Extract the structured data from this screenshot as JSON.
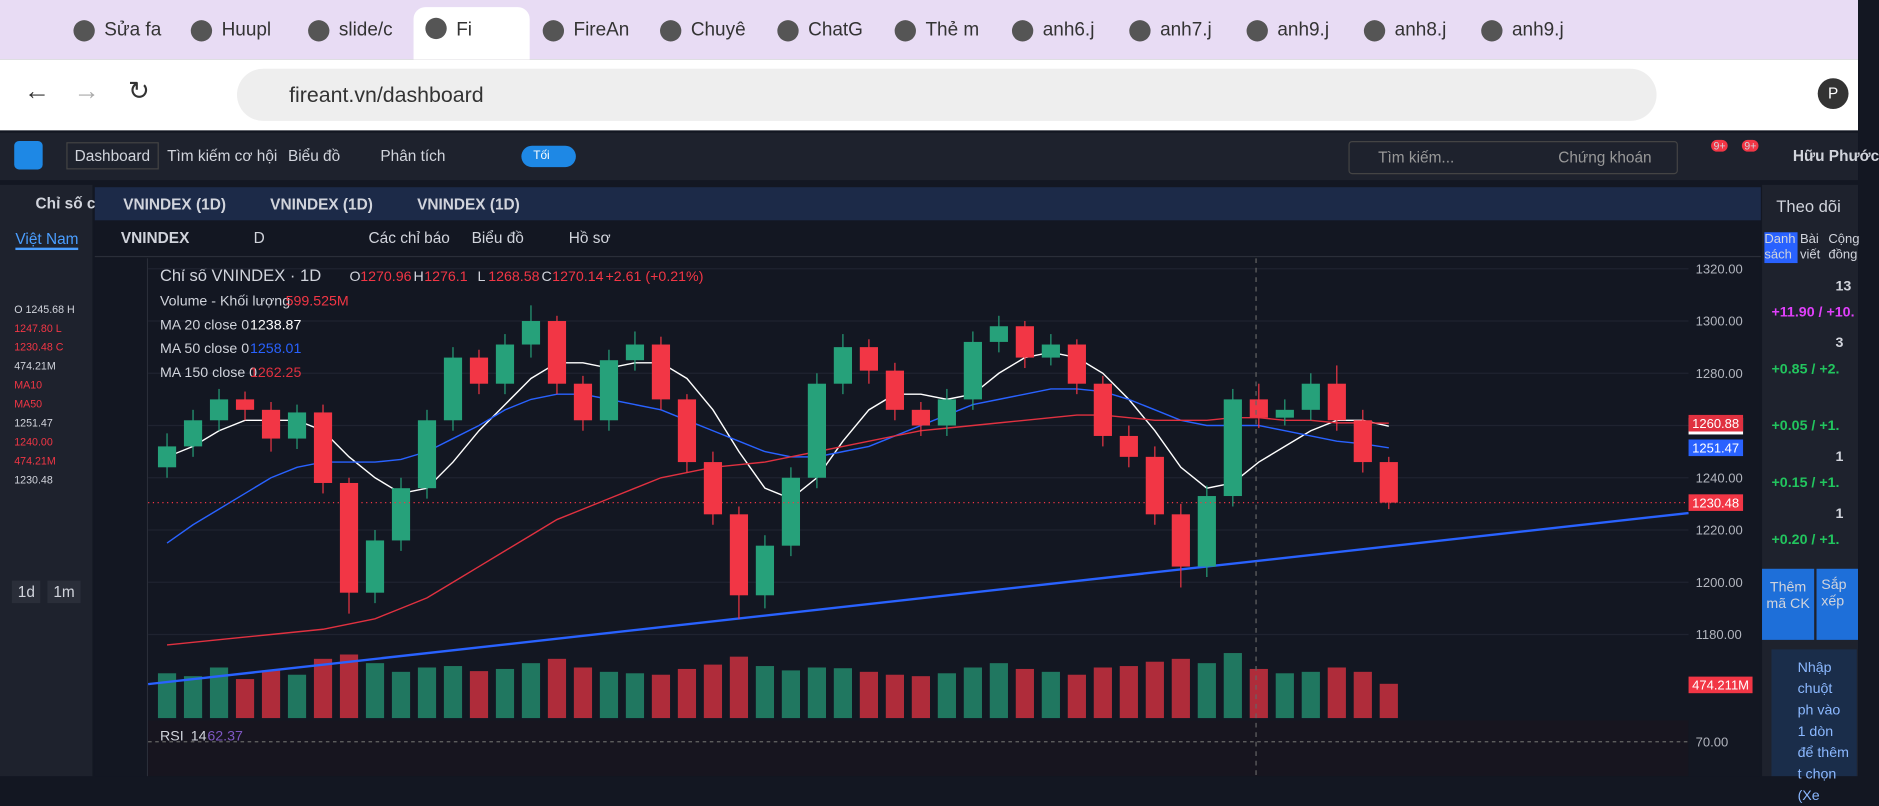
{
  "browser": {
    "tabs": [
      "Sửa fa",
      "Huupl",
      "slide/c",
      "Fi",
      "FireAn",
      "Chuyê",
      "ChatG",
      "Thẻ m",
      "anh6.j",
      "anh7.j",
      "anh9.j",
      "anh8.j",
      "anh9.j"
    ],
    "active_tab": 3,
    "url": "fireant.vn/dashboard",
    "profile": "P"
  },
  "app": {
    "menu": [
      "Dashboard",
      "Tìm kiếm cơ hội",
      "Biểu đồ",
      "Phân tích"
    ],
    "theme_toggle": "Tối",
    "search": "Tìm kiếm...",
    "search_scope": "Chứng khoán",
    "badges": [
      "9+",
      "9+"
    ],
    "user": "Hữu Phước"
  },
  "left_panel": {
    "title": "Chỉ số c",
    "tab": "Việt Nam",
    "lines": [
      "O 1245.68 H",
      "1247.80 L",
      "1230.48 C",
      "474.21M",
      "MA10",
      "MA50",
      "1251.47",
      "1240.00",
      "474.21M",
      "1230.48"
    ],
    "ranges": [
      "1d",
      "1m"
    ]
  },
  "chart_tabs": [
    "VNINDEX (1D)",
    "VNINDEX (1D)",
    "VNINDEX (1D)"
  ],
  "toolbar": {
    "symbol": "VNINDEX",
    "interval": "D",
    "indicators": "Các chỉ báo",
    "chart_menu": "Biểu đồ",
    "profile": "Hồ sơ"
  },
  "right_panel": {
    "title": "Theo dõi",
    "tabs": [
      "Danh sách",
      "Bài viết",
      "Cộng đồng"
    ],
    "rows": [
      [
        "13",
        "+11.90 / +10."
      ],
      [
        "3",
        "+0.85 / +2."
      ],
      [
        "",
        "+0.05 / +1."
      ],
      [
        "1",
        "+0.15 / +1."
      ],
      [
        "1",
        "+0.20 / +1."
      ]
    ],
    "add": "Thêm mã CK",
    "sort": "Sắp xếp",
    "hint": "Nhập chuột ph vào 1 dòn để thêm t chọn (Xe"
  },
  "chart_data": {
    "type": "candlestick",
    "title": "Chỉ số VNINDEX · 1D",
    "readout": [
      {
        "label": "O",
        "value": 1270.96
      },
      {
        "label": "H",
        "value": 1276.1
      },
      {
        "label": "L",
        "value": 1268.58
      },
      {
        "label": "C",
        "value": 1270.14
      }
    ],
    "change": "+2.61 (+0.21%)",
    "volume_title": "Volume - Khối lượng",
    "volume_readout": "599.525M",
    "open": [
      1244,
      1252,
      1262,
      1270,
      1266,
      1255,
      1265,
      1238,
      1196,
      1216,
      1236,
      1262,
      1286,
      1276,
      1291,
      1300,
      1276,
      1262,
      1285,
      1291,
      1270,
      1246,
      1226,
      1195,
      1214,
      1240,
      1276,
      1290,
      1281,
      1266,
      1260,
      1270,
      1292,
      1298,
      1286,
      1291,
      1276,
      1256,
      1248,
      1226,
      1206,
      1233,
      1270,
      1263,
      1266,
      1276,
      1262,
      1246
    ],
    "high": [
      1257,
      1266,
      1274,
      1273,
      1269,
      1268,
      1268,
      1240,
      1220,
      1240,
      1266,
      1290,
      1289,
      1295,
      1306,
      1302,
      1279,
      1289,
      1296,
      1294,
      1272,
      1250,
      1229,
      1218,
      1244,
      1280,
      1295,
      1293,
      1284,
      1269,
      1274,
      1296,
      1302,
      1300,
      1295,
      1293,
      1279,
      1260,
      1252,
      1230,
      1237,
      1274,
      1276,
      1270,
      1280,
      1283,
      1266,
      1248
    ],
    "low": [
      1240,
      1248,
      1258,
      1262,
      1250,
      1251,
      1234,
      1188,
      1192,
      1212,
      1232,
      1258,
      1272,
      1272,
      1286,
      1272,
      1258,
      1258,
      1281,
      1266,
      1242,
      1222,
      1186,
      1190,
      1210,
      1236,
      1272,
      1276,
      1262,
      1256,
      1256,
      1266,
      1288,
      1282,
      1283,
      1272,
      1252,
      1244,
      1222,
      1198,
      1202,
      1229,
      1259,
      1260,
      1262,
      1258,
      1242,
      1228
    ],
    "close": [
      1252,
      1262,
      1270,
      1266,
      1255,
      1265,
      1238,
      1196,
      1216,
      1236,
      1262,
      1286,
      1276,
      1291,
      1300,
      1276,
      1262,
      1285,
      1291,
      1270,
      1246,
      1226,
      1195,
      1214,
      1240,
      1276,
      1290,
      1281,
      1266,
      1260,
      1270,
      1292,
      1298,
      1286,
      1291,
      1276,
      1256,
      1248,
      1226,
      1206,
      1233,
      1270,
      1263,
      1266,
      1276,
      1262,
      1246,
      1230.48
    ],
    "volume": [
      620,
      580,
      700,
      540,
      660,
      600,
      820,
      880,
      760,
      640,
      700,
      720,
      650,
      680,
      760,
      820,
      700,
      640,
      620,
      600,
      680,
      740,
      850,
      720,
      660,
      700,
      690,
      640,
      600,
      580,
      620,
      700,
      760,
      680,
      640,
      600,
      700,
      720,
      780,
      820,
      760,
      900,
      680,
      620,
      640,
      700,
      640,
      474.211
    ],
    "volume_labels": {
      "47": "474.211M"
    },
    "up_color": "#26a17a",
    "down_color": "#f23645",
    "series": [
      {
        "name": "MA 20 close 0",
        "legend_value": 1238.87,
        "color": "#ffffff",
        "values": [
          1248,
          1252,
          1258,
          1262,
          1262,
          1262,
          1258,
          1248,
          1240,
          1234,
          1236,
          1246,
          1258,
          1268,
          1278,
          1284,
          1284,
          1282,
          1284,
          1284,
          1278,
          1266,
          1250,
          1236,
          1232,
          1240,
          1254,
          1266,
          1272,
          1272,
          1270,
          1272,
          1280,
          1286,
          1288,
          1286,
          1280,
          1270,
          1258,
          1244,
          1236,
          1238,
          1246,
          1252,
          1258,
          1262,
          1262,
          1259.75
        ]
      },
      {
        "name": "MA 50 close 0",
        "legend_value": 1258.01,
        "color": "#2962ff",
        "values": [
          1215,
          1222,
          1228,
          1234,
          1240,
          1244,
          1246,
          1246,
          1246,
          1247,
          1250,
          1255,
          1260,
          1266,
          1270,
          1272,
          1272,
          1270,
          1268,
          1266,
          1262,
          1258,
          1254,
          1250,
          1248,
          1248,
          1250,
          1252,
          1256,
          1260,
          1264,
          1268,
          1270,
          1272,
          1274,
          1274,
          1273,
          1270,
          1266,
          1262,
          1260,
          1260,
          1260,
          1258,
          1256,
          1254,
          1253,
          1251.47
        ]
      },
      {
        "name": "MA 150 close 0",
        "legend_value": 1262.25,
        "color": "#e03140",
        "values": [
          1176,
          1177,
          1178,
          1179,
          1180,
          1181,
          1182,
          1184,
          1186,
          1190,
          1194,
          1200,
          1206,
          1212,
          1218,
          1224,
          1228,
          1232,
          1236,
          1240,
          1242,
          1244,
          1245,
          1246,
          1248,
          1250,
          1252,
          1254,
          1256,
          1258,
          1259,
          1260,
          1261,
          1262,
          1263,
          1264,
          1264,
          1263,
          1262,
          1262,
          1262,
          1263,
          1263,
          1262,
          1262,
          1261,
          1261,
          1260.88
        ]
      }
    ],
    "trendline": {
      "color": "#2962ff",
      "values": [
        1161,
        1226.5
      ]
    },
    "ylim": [
      1148,
      1324
    ],
    "yticks": [
      {
        "value": 1180,
        "label": "1180.00"
      },
      {
        "value": 1200,
        "label": "1200.00"
      },
      {
        "value": 1220,
        "label": "1220.00"
      },
      {
        "value": 1240,
        "label": "1240.00"
      },
      {
        "value": 1260,
        "label": "1260.00"
      },
      {
        "value": 1280,
        "label": "1280.00"
      },
      {
        "value": 1300,
        "label": "1300.00"
      },
      {
        "value": 1320,
        "label": "1320.00"
      }
    ],
    "rsi": {
      "name": "RSI",
      "period": 14,
      "value": 62.37,
      "level": {
        "value": 70,
        "label": "70.00"
      }
    }
  }
}
